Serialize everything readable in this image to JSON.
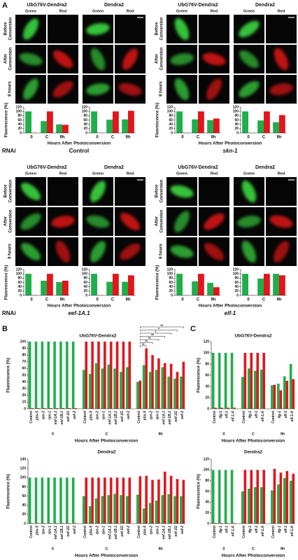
{
  "panel_labels": [
    "A",
    "B",
    "C"
  ],
  "panel_a": [
    {
      "rnai_label": "RNAi",
      "condition": "Control",
      "constructs": [
        "UbG76V-Dendra2",
        "Dendra2"
      ],
      "channels": [
        "Green",
        "Red"
      ],
      "rows": [
        [
          "Before",
          "Conversion"
        ],
        [
          "After",
          "Conversion"
        ],
        [
          "9 hours"
        ]
      ]
    },
    {
      "condition": "skn-1",
      "constructs": [
        "UbG76V-Dendra2",
        "Dendra2"
      ],
      "channels": [
        "Green",
        "Red"
      ],
      "rows": [
        [
          "Before",
          "Conversion"
        ],
        [
          "After",
          "Conversion"
        ],
        [
          "9 hours"
        ]
      ]
    },
    {
      "rnai_label": "RNAi",
      "condition": "eef-1A.1",
      "constructs": [
        "UbG76V-Dendra2",
        "Dendra2"
      ],
      "channels": [
        "Green",
        "Red"
      ],
      "rows": [
        [
          "Before",
          "Conversion"
        ],
        [
          "After",
          "Conversion"
        ],
        [
          "9 hours"
        ]
      ]
    },
    {
      "condition": "elf-1",
      "constructs": [
        "UbG76V-Dendra2",
        "Dendra2"
      ],
      "channels": [
        "Green",
        "Red"
      ],
      "rows": [
        [
          "Before",
          "Conversion"
        ],
        [
          "After",
          "Conversion"
        ],
        [
          "9 hours"
        ]
      ]
    }
  ],
  "chart_data": [
    {
      "type": "bar",
      "categories": [
        "0",
        "C",
        "9h"
      ],
      "series": [
        {
          "color": "#1fae4b",
          "values": [
            100,
            55,
            40
          ]
        },
        {
          "color": "#e3141b",
          "values": [
            1,
            100,
            38
          ]
        }
      ],
      "ylim": [
        0,
        120
      ],
      "yticks": [
        0,
        20,
        40,
        60,
        80,
        100,
        120
      ],
      "ylabel": "Fluorescence (%)",
      "xlabel": "Hours After Photoconversion"
    },
    {
      "type": "bar",
      "categories": [
        "0",
        "C",
        "9h"
      ],
      "series": [
        {
          "color": "#1fae4b",
          "values": [
            100,
            62,
            63
          ]
        },
        {
          "color": "#e3141b",
          "values": [
            1,
            100,
            103
          ]
        }
      ],
      "ylim": [
        0,
        120
      ],
      "yticks": [
        0,
        20,
        40,
        60,
        80,
        100,
        120
      ]
    },
    {
      "type": "bar",
      "categories": [
        "0",
        "C",
        "9h"
      ],
      "series": [
        {
          "color": "#1fae4b",
          "values": [
            100,
            63,
            60
          ]
        },
        {
          "color": "#e3141b",
          "values": [
            1,
            100,
            67
          ]
        }
      ],
      "ylim": [
        0,
        120
      ],
      "yticks": [
        0,
        20,
        40,
        60,
        80,
        100,
        120
      ],
      "ylabel": "Fluorescence (%)",
      "xlabel": "Hours After Photoconversion"
    },
    {
      "type": "bar",
      "categories": [
        "0",
        "C",
        "9h"
      ],
      "series": [
        {
          "color": "#1fae4b",
          "values": [
            100,
            58,
            50
          ]
        },
        {
          "color": "#e3141b",
          "values": [
            1,
            100,
            83
          ]
        }
      ],
      "ylim": [
        0,
        120
      ],
      "yticks": [
        0,
        20,
        40,
        60,
        80,
        100,
        120
      ]
    },
    {
      "type": "bar",
      "categories": [
        "0",
        "C",
        "9h"
      ],
      "series": [
        {
          "color": "#1fae4b",
          "values": [
            100,
            68,
            62
          ]
        },
        {
          "color": "#e3141b",
          "values": [
            1,
            100,
            68
          ]
        }
      ],
      "ylim": [
        0,
        120
      ],
      "yticks": [
        0,
        20,
        40,
        60,
        80,
        100,
        120
      ],
      "ylabel": "Fluorescence (%)",
      "xlabel": "Hours After Photoconversion"
    },
    {
      "type": "bar",
      "categories": [
        "0",
        "C",
        "9h"
      ],
      "series": [
        {
          "color": "#1fae4b",
          "values": [
            100,
            63,
            63
          ]
        },
        {
          "color": "#e3141b",
          "values": [
            1,
            100,
            93
          ]
        }
      ],
      "ylim": [
        0,
        120
      ],
      "yticks": [
        0,
        20,
        40,
        60,
        80,
        100,
        120
      ]
    },
    {
      "type": "bar",
      "categories": [
        "0",
        "C",
        "9h"
      ],
      "series": [
        {
          "color": "#1fae4b",
          "values": [
            100,
            65,
            58
          ]
        },
        {
          "color": "#e3141b",
          "values": [
            1,
            100,
            38
          ]
        }
      ],
      "ylim": [
        0,
        120
      ],
      "yticks": [
        0,
        20,
        40,
        60,
        80,
        100,
        120
      ],
      "ylabel": "Fluorescence (%)",
      "xlabel": "Hours After Photoconversion"
    },
    {
      "type": "bar",
      "categories": [
        "0",
        "C",
        "9h"
      ],
      "series": [
        {
          "color": "#1fae4b",
          "values": [
            100,
            78,
            100
          ]
        },
        {
          "color": "#e3141b",
          "values": [
            1,
            100,
            93
          ]
        }
      ],
      "ylim": [
        0,
        120
      ],
      "yticks": [
        0,
        20,
        40,
        60,
        80,
        100,
        120
      ]
    },
    {
      "type": "bar",
      "title": "UbG76V-Dendra2",
      "categories": [
        "Control",
        "pbs-5",
        "rpn-2",
        "rpn-1",
        "eef-1A.1",
        "eef-1B.1",
        "eef-1G",
        "eef-2",
        "Control",
        "pbs-5",
        "rpn-2",
        "rpn-1",
        "eef-1A.1",
        "eef-1B.1",
        "eef-1G",
        "eef-2",
        "Control",
        "pbs-5",
        "rpn-2",
        "rpn-1",
        "eef-1A.1",
        "eef-1B.1",
        "eef-1G",
        "eef-2"
      ],
      "groups": [
        "0",
        "C",
        "9h"
      ],
      "series": [
        {
          "color": "#1fae4b",
          "values": [
            100,
            100,
            100,
            100,
            100,
            100,
            100,
            100,
            58,
            52,
            68,
            60,
            66,
            60,
            55,
            62,
            40,
            65,
            55,
            58,
            62,
            48,
            45,
            48
          ]
        },
        {
          "color": "#e3141b",
          "values": [
            1,
            1,
            1,
            1,
            1,
            1,
            1,
            1,
            100,
            100,
            100,
            100,
            100,
            100,
            100,
            100,
            42,
            90,
            80,
            75,
            68,
            67,
            55,
            70
          ]
        }
      ],
      "ylim": [
        0,
        100
      ],
      "yticks": [
        0,
        10,
        20,
        30,
        40,
        50,
        60,
        70,
        80,
        90,
        100
      ],
      "ylabel": "Fluorescence (%)",
      "xlabel": "Hours After Photoconversion",
      "annotations": [
        "**",
        "**",
        "**",
        "**",
        "*",
        "*",
        "**"
      ]
    },
    {
      "type": "bar",
      "title": "Dendra2",
      "categories": [
        "Control",
        "pbs-5",
        "rpn-2",
        "rpn-1",
        "eef-1A.1",
        "eef-1B.1",
        "eef-1G",
        "eef-2",
        "Control",
        "pbs-5",
        "rpn-2",
        "rpn-1",
        "eef-1A.1",
        "eef-1B.1",
        "eef-1G",
        "eef-2",
        "Control",
        "pbs-5",
        "rpn-2",
        "rpn-1",
        "eef-1A.1",
        "eef-1B.1",
        "eef-1G",
        "eef-2"
      ],
      "groups": [
        "0",
        "C",
        "9h"
      ],
      "series": [
        {
          "color": "#1fae4b",
          "values": [
            100,
            100,
            100,
            100,
            100,
            100,
            100,
            100,
            60,
            38,
            55,
            60,
            62,
            65,
            62,
            60,
            63,
            33,
            45,
            50,
            62,
            64,
            60,
            60
          ]
        },
        {
          "color": "#e3141b",
          "values": [
            1,
            1,
            1,
            1,
            1,
            1,
            1,
            1,
            100,
            100,
            100,
            100,
            100,
            100,
            100,
            100,
            103,
            104,
            95,
            96,
            113,
            104,
            97,
            95
          ]
        }
      ],
      "ylim": [
        0,
        140
      ],
      "yticks": [
        0,
        20,
        40,
        60,
        80,
        100,
        120,
        140
      ],
      "ylabel": "Fluorescence (%)",
      "xlabel": "Hours After Photoconversion"
    },
    {
      "type": "bar",
      "title": "UbG76V-Dendra2",
      "categories": [
        "Control",
        "ifg-1",
        "elf-1",
        "eif-1.A",
        "Control",
        "ifg-1",
        "elf-1",
        "eif-1.A",
        "Control",
        "ifg-1",
        "elf-1",
        "eif-1.A"
      ],
      "groups": [
        "0",
        "C",
        "9h"
      ],
      "series": [
        {
          "color": "#1fae4b",
          "values": [
            100,
            100,
            100,
            100,
            57,
            72,
            68,
            70,
            42,
            45,
            58,
            80
          ]
        },
        {
          "color": "#e3141b",
          "values": [
            2,
            2,
            2,
            2,
            100,
            100,
            100,
            100,
            43,
            33,
            50,
            53
          ]
        }
      ],
      "ylim": [
        0,
        120
      ],
      "yticks": [
        0,
        20,
        40,
        60,
        80,
        100,
        120
      ],
      "ylabel": "Fluorescence (%)",
      "xlabel": "Hours After Photoconversion"
    },
    {
      "type": "bar",
      "title": "Dendra2",
      "categories": [
        "Control",
        "ifg-1",
        "elf-1",
        "eif-1.A",
        "Control",
        "ifg-1",
        "elf-1",
        "eif-1.A",
        "Control",
        "ifg-1",
        "elf-1",
        "eif-1.A"
      ],
      "groups": [
        "0",
        "C",
        "9h"
      ],
      "series": [
        {
          "color": "#1fae4b",
          "values": [
            100,
            100,
            100,
            100,
            60,
            65,
            68,
            68,
            62,
            73,
            85,
            80
          ]
        },
        {
          "color": "#e3141b",
          "values": [
            1,
            1,
            1,
            1,
            100,
            100,
            100,
            100,
            102,
            95,
            98,
            93
          ]
        }
      ],
      "ylim": [
        0,
        120
      ],
      "yticks": [
        0,
        20,
        40,
        60,
        80,
        100,
        120
      ],
      "ylabel": "Fluorescence (%)",
      "xlabel": "Hours After Photoconversion"
    }
  ]
}
